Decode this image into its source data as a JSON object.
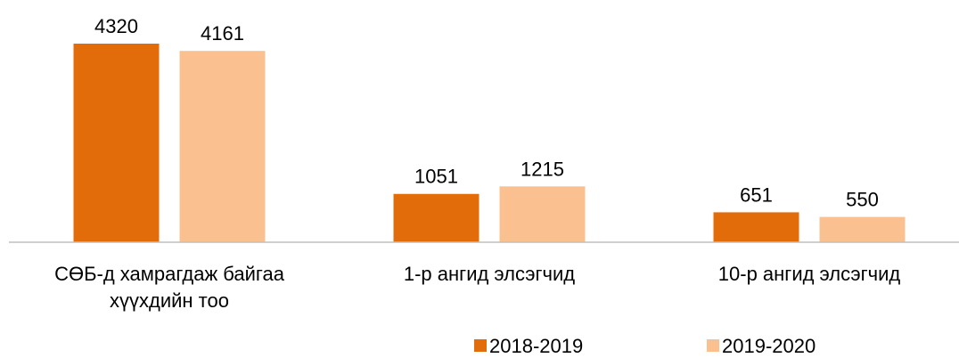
{
  "chart_data": {
    "type": "bar",
    "categories": [
      "СӨБ-д хамрагдаж байгаа хүүхдийн тоо",
      "1-р ангид элсэгчид",
      "10-р ангид элсэгчид"
    ],
    "series": [
      {
        "name": "2018-2019",
        "color": "#e36c0a",
        "values": [
          4320,
          1051,
          651
        ]
      },
      {
        "name": "2019-2020",
        "color": "#fac090",
        "values": [
          4161,
          1215,
          550
        ]
      }
    ],
    "legend": "bottom"
  }
}
